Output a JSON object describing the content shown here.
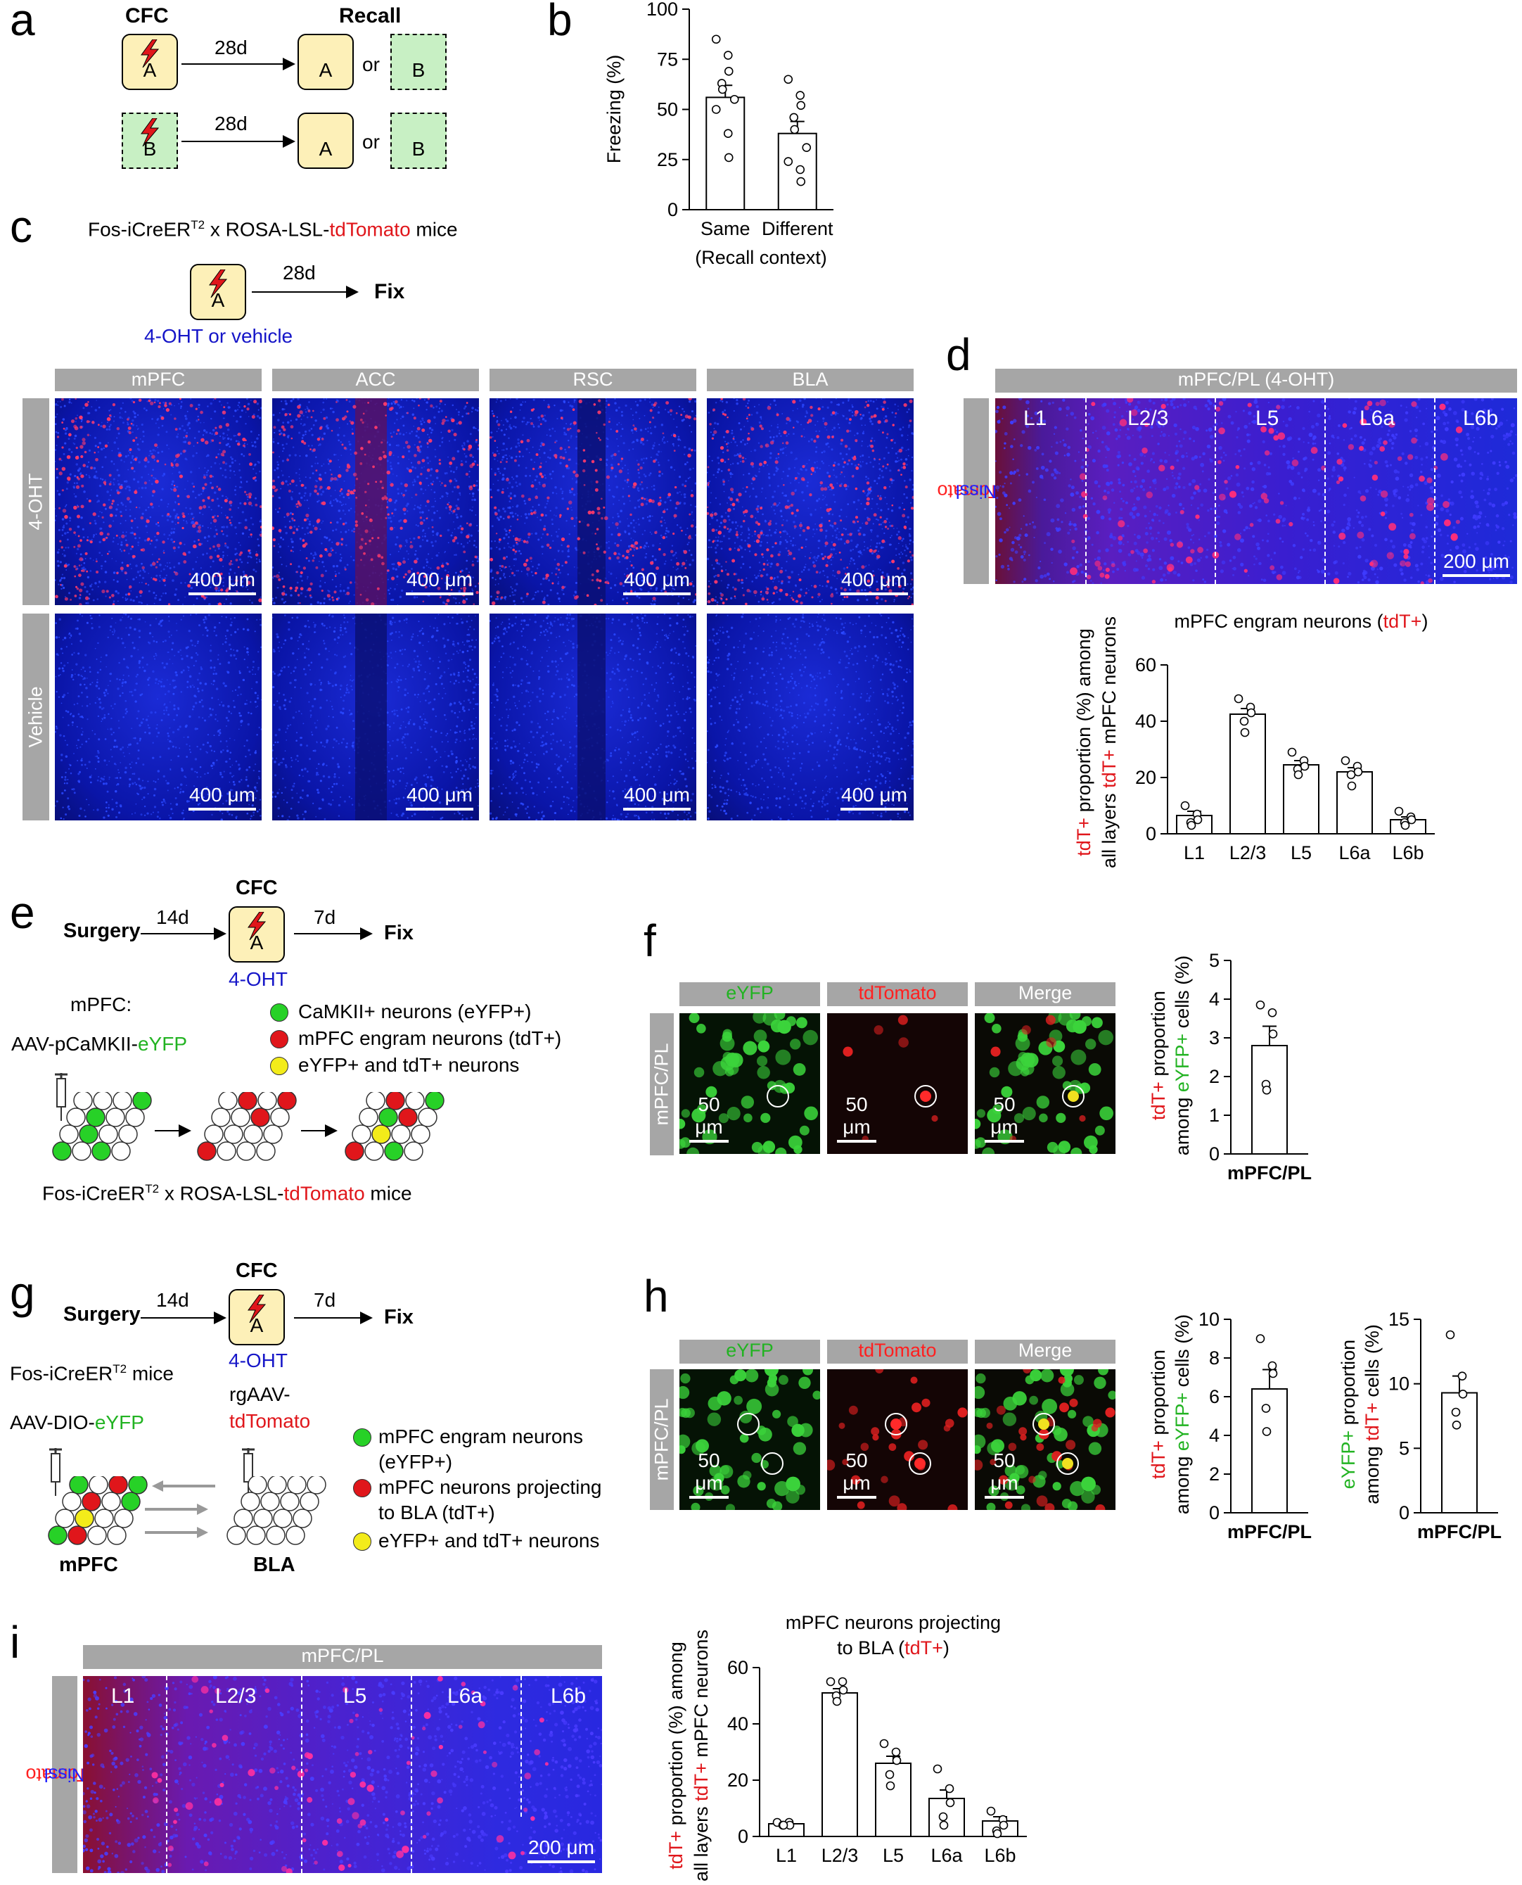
{
  "labels": {
    "a": "a",
    "b": "b",
    "c": "c",
    "d": "d",
    "e": "e",
    "f": "f",
    "g": "g",
    "h": "h",
    "i": "i"
  },
  "panel_a": {
    "cfc": "CFC",
    "recall": "Recall",
    "days": "28d",
    "or": "or",
    "ctx_a": "A",
    "ctx_b": "B"
  },
  "panel_c": {
    "title_pre": "Fos-iCreER",
    "title_sup": "T2",
    "title_mid": " x ROSA-LSL-",
    "title_red": "tdTomato",
    "title_post": " mice",
    "days": "28d",
    "fix": "Fix",
    "ctx": "A",
    "treatment": "4-OHT or vehicle",
    "regions": [
      "mPFC",
      "ACC",
      "RSC",
      "BLA"
    ],
    "rows": [
      "4-OHT",
      "Vehicle"
    ],
    "scale": "400 μm"
  },
  "panel_d": {
    "header": "mPFC/PL (4-OHT)",
    "layers": [
      "L1",
      "L2/3",
      "L5",
      "L6a",
      "L6b"
    ],
    "side_red": "tdTomato",
    "side_blue": "Nissl",
    "scale": "200 μm"
  },
  "panel_e": {
    "surgery": "Surgery",
    "d14": "14d",
    "cfc": "CFC",
    "ctx": "A",
    "d7": "7d",
    "fix": "Fix",
    "ohT": "4-OHT",
    "virus_line1": "mPFC:",
    "virus_pre": "AAV-pCaMKII-",
    "virus_green": "eYFP",
    "legend": [
      "CaMKII+ neurons (eYFP+)",
      "mPFC engram neurons (tdT+)",
      "eYFP+ and tdT+ neurons"
    ],
    "mouse_pre": "Fos-iCreER",
    "mouse_sup": "T2",
    "mouse_mid": " x ROSA-LSL-",
    "mouse_red": "tdTomato",
    "mouse_post": " mice"
  },
  "panel_f": {
    "cols": [
      "eYFP",
      "tdTomato",
      "Merge"
    ],
    "side": "mPFC/PL",
    "scale": "50 μm"
  },
  "panel_g": {
    "surgery": "Surgery",
    "d14": "14d",
    "cfc": "CFC",
    "ctx": "A",
    "d7": "7d",
    "fix": "Fix",
    "ohT": "4-OHT",
    "mouse_pre": "Fos-iCreER",
    "mouse_sup": "T2",
    "mouse_post": " mice",
    "aav_pre": "AAV-DIO-",
    "aav_green": "eYFP",
    "rg_line1": "rgAAV-",
    "rg_red": "tdTomato",
    "legend": [
      "mPFC engram neurons",
      "(eYFP+)",
      "mPFC neurons projecting",
      "to BLA (tdT+)",
      "eYFP+ and tdT+ neurons"
    ],
    "mpfc": "mPFC",
    "bla": "BLA"
  },
  "panel_h": {
    "cols": [
      "eYFP",
      "tdTomato",
      "Merge"
    ],
    "side": "mPFC/PL",
    "scale": "50 μm"
  },
  "panel_i": {
    "header": "mPFC/PL",
    "layers": [
      "L1",
      "L2/3",
      "L5",
      "L6a",
      "L6b"
    ],
    "side_red": "tdTomato",
    "side_blue": "Nissl",
    "scale": "200 μm"
  },
  "chart_data": [
    {
      "id": "b",
      "type": "bar",
      "categories": [
        "Same",
        "Different"
      ],
      "xlabel": "(Recall context)",
      "ylabel": "Freezing (%)",
      "ylim": [
        0,
        100
      ],
      "yticks": [
        0,
        25,
        50,
        75,
        100
      ],
      "values": [
        56,
        38
      ],
      "sem": [
        6,
        6
      ],
      "points": [
        [
          85,
          77,
          69,
          63,
          60,
          55,
          50,
          38,
          26
        ],
        [
          65,
          57,
          52,
          46,
          40,
          31,
          24,
          20,
          14
        ]
      ]
    },
    {
      "id": "d",
      "type": "bar",
      "title_pre": "mPFC engram neurons (",
      "title_red": "tdT+",
      "title_post": ")",
      "categories": [
        "L1",
        "L2/3",
        "L5",
        "L6a",
        "L6b"
      ],
      "ylabel_line1": "tdT+ proportion (%) among",
      "ylabel_line2_pre": "all layers ",
      "ylabel_line2_red": "tdT+",
      "ylabel_line2_post": " mPFC neurons",
      "ylim": [
        0,
        60
      ],
      "yticks": [
        0,
        20,
        40,
        60
      ],
      "values": [
        6.5,
        42.5,
        24.5,
        22,
        5
      ],
      "sem": [
        1.5,
        2,
        1.5,
        1.5,
        1
      ],
      "points": [
        [
          10,
          7,
          5,
          4,
          3
        ],
        [
          48,
          45,
          43,
          40,
          36
        ],
        [
          29,
          26,
          24,
          23,
          21
        ],
        [
          26,
          24,
          22,
          21,
          17
        ],
        [
          8,
          6,
          5,
          4,
          3
        ]
      ]
    },
    {
      "id": "f",
      "type": "bar",
      "categories": [
        "mPFC/PL"
      ],
      "ylabel_line1_red": "tdT+",
      "ylabel_line1_post": " proportion",
      "ylabel_line2_pre": "among ",
      "ylabel_line2_green": "eYFP+",
      "ylabel_line2_post": " cells (%)",
      "ylim": [
        0,
        5
      ],
      "yticks": [
        0,
        1,
        2,
        3,
        4,
        5
      ],
      "values": [
        2.8
      ],
      "sem": [
        0.5
      ],
      "points": [
        [
          3.85,
          3.65,
          3.1,
          1.8,
          1.65
        ]
      ]
    },
    {
      "id": "h1",
      "type": "bar",
      "categories": [
        "mPFC/PL"
      ],
      "ylabel_line1_red": "tdT+",
      "ylabel_line1_post": " proportion",
      "ylabel_line2_pre": "among ",
      "ylabel_line2_green": "eYFP+",
      "ylabel_line2_post": " cells (%)",
      "ylim": [
        0,
        10
      ],
      "yticks": [
        0,
        2,
        4,
        6,
        8,
        10
      ],
      "values": [
        6.4
      ],
      "sem": [
        1
      ],
      "points": [
        [
          9,
          7.6,
          7.2,
          5.4,
          4.2
        ]
      ]
    },
    {
      "id": "h2",
      "type": "bar",
      "categories": [
        "mPFC/PL"
      ],
      "ylabel_line1_green": "eYFP+",
      "ylabel_line1_post": " proportion",
      "ylabel_line2_pre": "among ",
      "ylabel_line2_red": "tdT+",
      "ylabel_line2_post": " cells (%)",
      "ylim": [
        0,
        15
      ],
      "yticks": [
        0,
        5,
        10,
        15
      ],
      "values": [
        9.3
      ],
      "sem": [
        1.3
      ],
      "points": [
        [
          13.8,
          10.6,
          9.2,
          7.8,
          6.8
        ]
      ]
    },
    {
      "id": "i",
      "type": "bar",
      "title_line1": "mPFC neurons projecting",
      "title_pre": "to BLA (",
      "title_red": "tdT+",
      "title_post": ")",
      "categories": [
        "L1",
        "L2/3",
        "L5",
        "L6a",
        "L6b"
      ],
      "ylabel_line1": "tdT+ proportion (%) among",
      "ylabel_line2_pre": "all layers ",
      "ylabel_line2_red": "tdT+",
      "ylabel_line2_post": " mPFC neurons",
      "ylim": [
        0,
        60
      ],
      "yticks": [
        0,
        20,
        40,
        60
      ],
      "values": [
        4.5,
        51,
        26,
        13.5,
        5.5
      ],
      "sem": [
        0.5,
        1.5,
        2.5,
        3,
        1.5
      ],
      "points": [
        [
          5,
          5,
          4,
          4,
          4
        ],
        [
          55,
          55,
          52,
          50,
          48
        ],
        [
          33,
          30,
          27,
          22,
          18
        ],
        [
          24,
          17,
          12,
          7,
          4
        ],
        [
          9,
          6,
          4,
          2,
          1
        ]
      ]
    }
  ]
}
